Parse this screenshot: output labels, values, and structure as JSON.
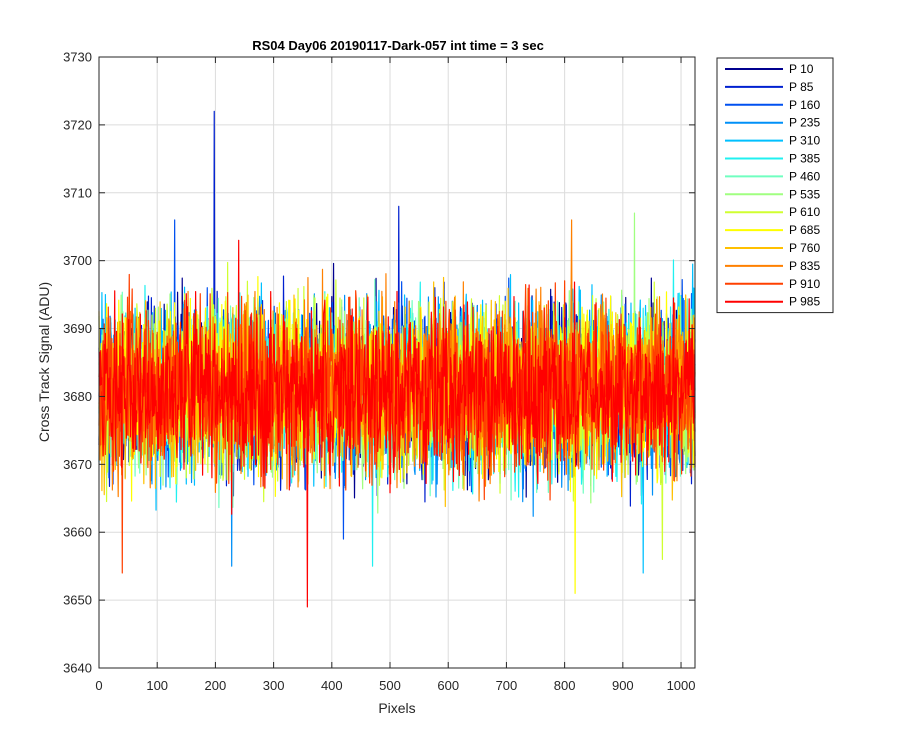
{
  "chart_data": {
    "type": "line",
    "title": "RS04 Day06 20190117-Dark-057 int time = 3 sec",
    "xlabel": "Pixels",
    "ylabel": "Cross Track Signal (ADU)",
    "xlim": [
      0,
      1024
    ],
    "ylim": [
      3640,
      3730
    ],
    "x_ticks": [
      0,
      100,
      200,
      300,
      400,
      500,
      600,
      700,
      800,
      900,
      1000
    ],
    "y_ticks": [
      3640,
      3650,
      3660,
      3670,
      3680,
      3690,
      3700,
      3710,
      3720,
      3730
    ],
    "x_tick_labels": [
      "0",
      "100",
      "200",
      "300",
      "400",
      "500",
      "600",
      "700",
      "800",
      "900",
      "1000"
    ],
    "y_tick_labels": [
      "3640",
      "3650",
      "3660",
      "3670",
      "3680",
      "3690",
      "3700",
      "3710",
      "3720",
      "3730"
    ],
    "grid": true,
    "legend_position": "outside-right",
    "series_mean": 3681,
    "series_noise_std": 6,
    "series": [
      {
        "name": "P 10",
        "color": "#00008f",
        "spikes": []
      },
      {
        "name": "P 85",
        "color": "#0020d0",
        "spikes": [
          [
            198,
            3722
          ],
          [
            515,
            3708
          ]
        ]
      },
      {
        "name": "P 160",
        "color": "#0050f0",
        "spikes": [
          [
            130,
            3706
          ],
          [
            420,
            3659
          ]
        ]
      },
      {
        "name": "P 235",
        "color": "#0090f8",
        "spikes": [
          [
            228,
            3655
          ]
        ]
      },
      {
        "name": "P 310",
        "color": "#00c0ff",
        "spikes": [
          [
            935,
            3654
          ]
        ]
      },
      {
        "name": "P 385",
        "color": "#20f0f0",
        "spikes": [
          [
            470,
            3655
          ]
        ]
      },
      {
        "name": "P 460",
        "color": "#70ffc0",
        "spikes": []
      },
      {
        "name": "P 535",
        "color": "#a0ff80",
        "spikes": [
          [
            920,
            3707
          ]
        ]
      },
      {
        "name": "P 610",
        "color": "#d0ff30",
        "spikes": [
          [
            968,
            3656
          ]
        ]
      },
      {
        "name": "P 685",
        "color": "#ffff00",
        "spikes": [
          [
            818,
            3651
          ]
        ]
      },
      {
        "name": "P 760",
        "color": "#ffc000",
        "spikes": []
      },
      {
        "name": "P 835",
        "color": "#ff8000",
        "spikes": [
          [
            812,
            3706
          ]
        ]
      },
      {
        "name": "P 910",
        "color": "#ff4000",
        "spikes": [
          [
            40,
            3654
          ]
        ]
      },
      {
        "name": "P 985",
        "color": "#ff0000",
        "spikes": [
          [
            358,
            3649
          ],
          [
            240,
            3703
          ]
        ]
      }
    ]
  }
}
